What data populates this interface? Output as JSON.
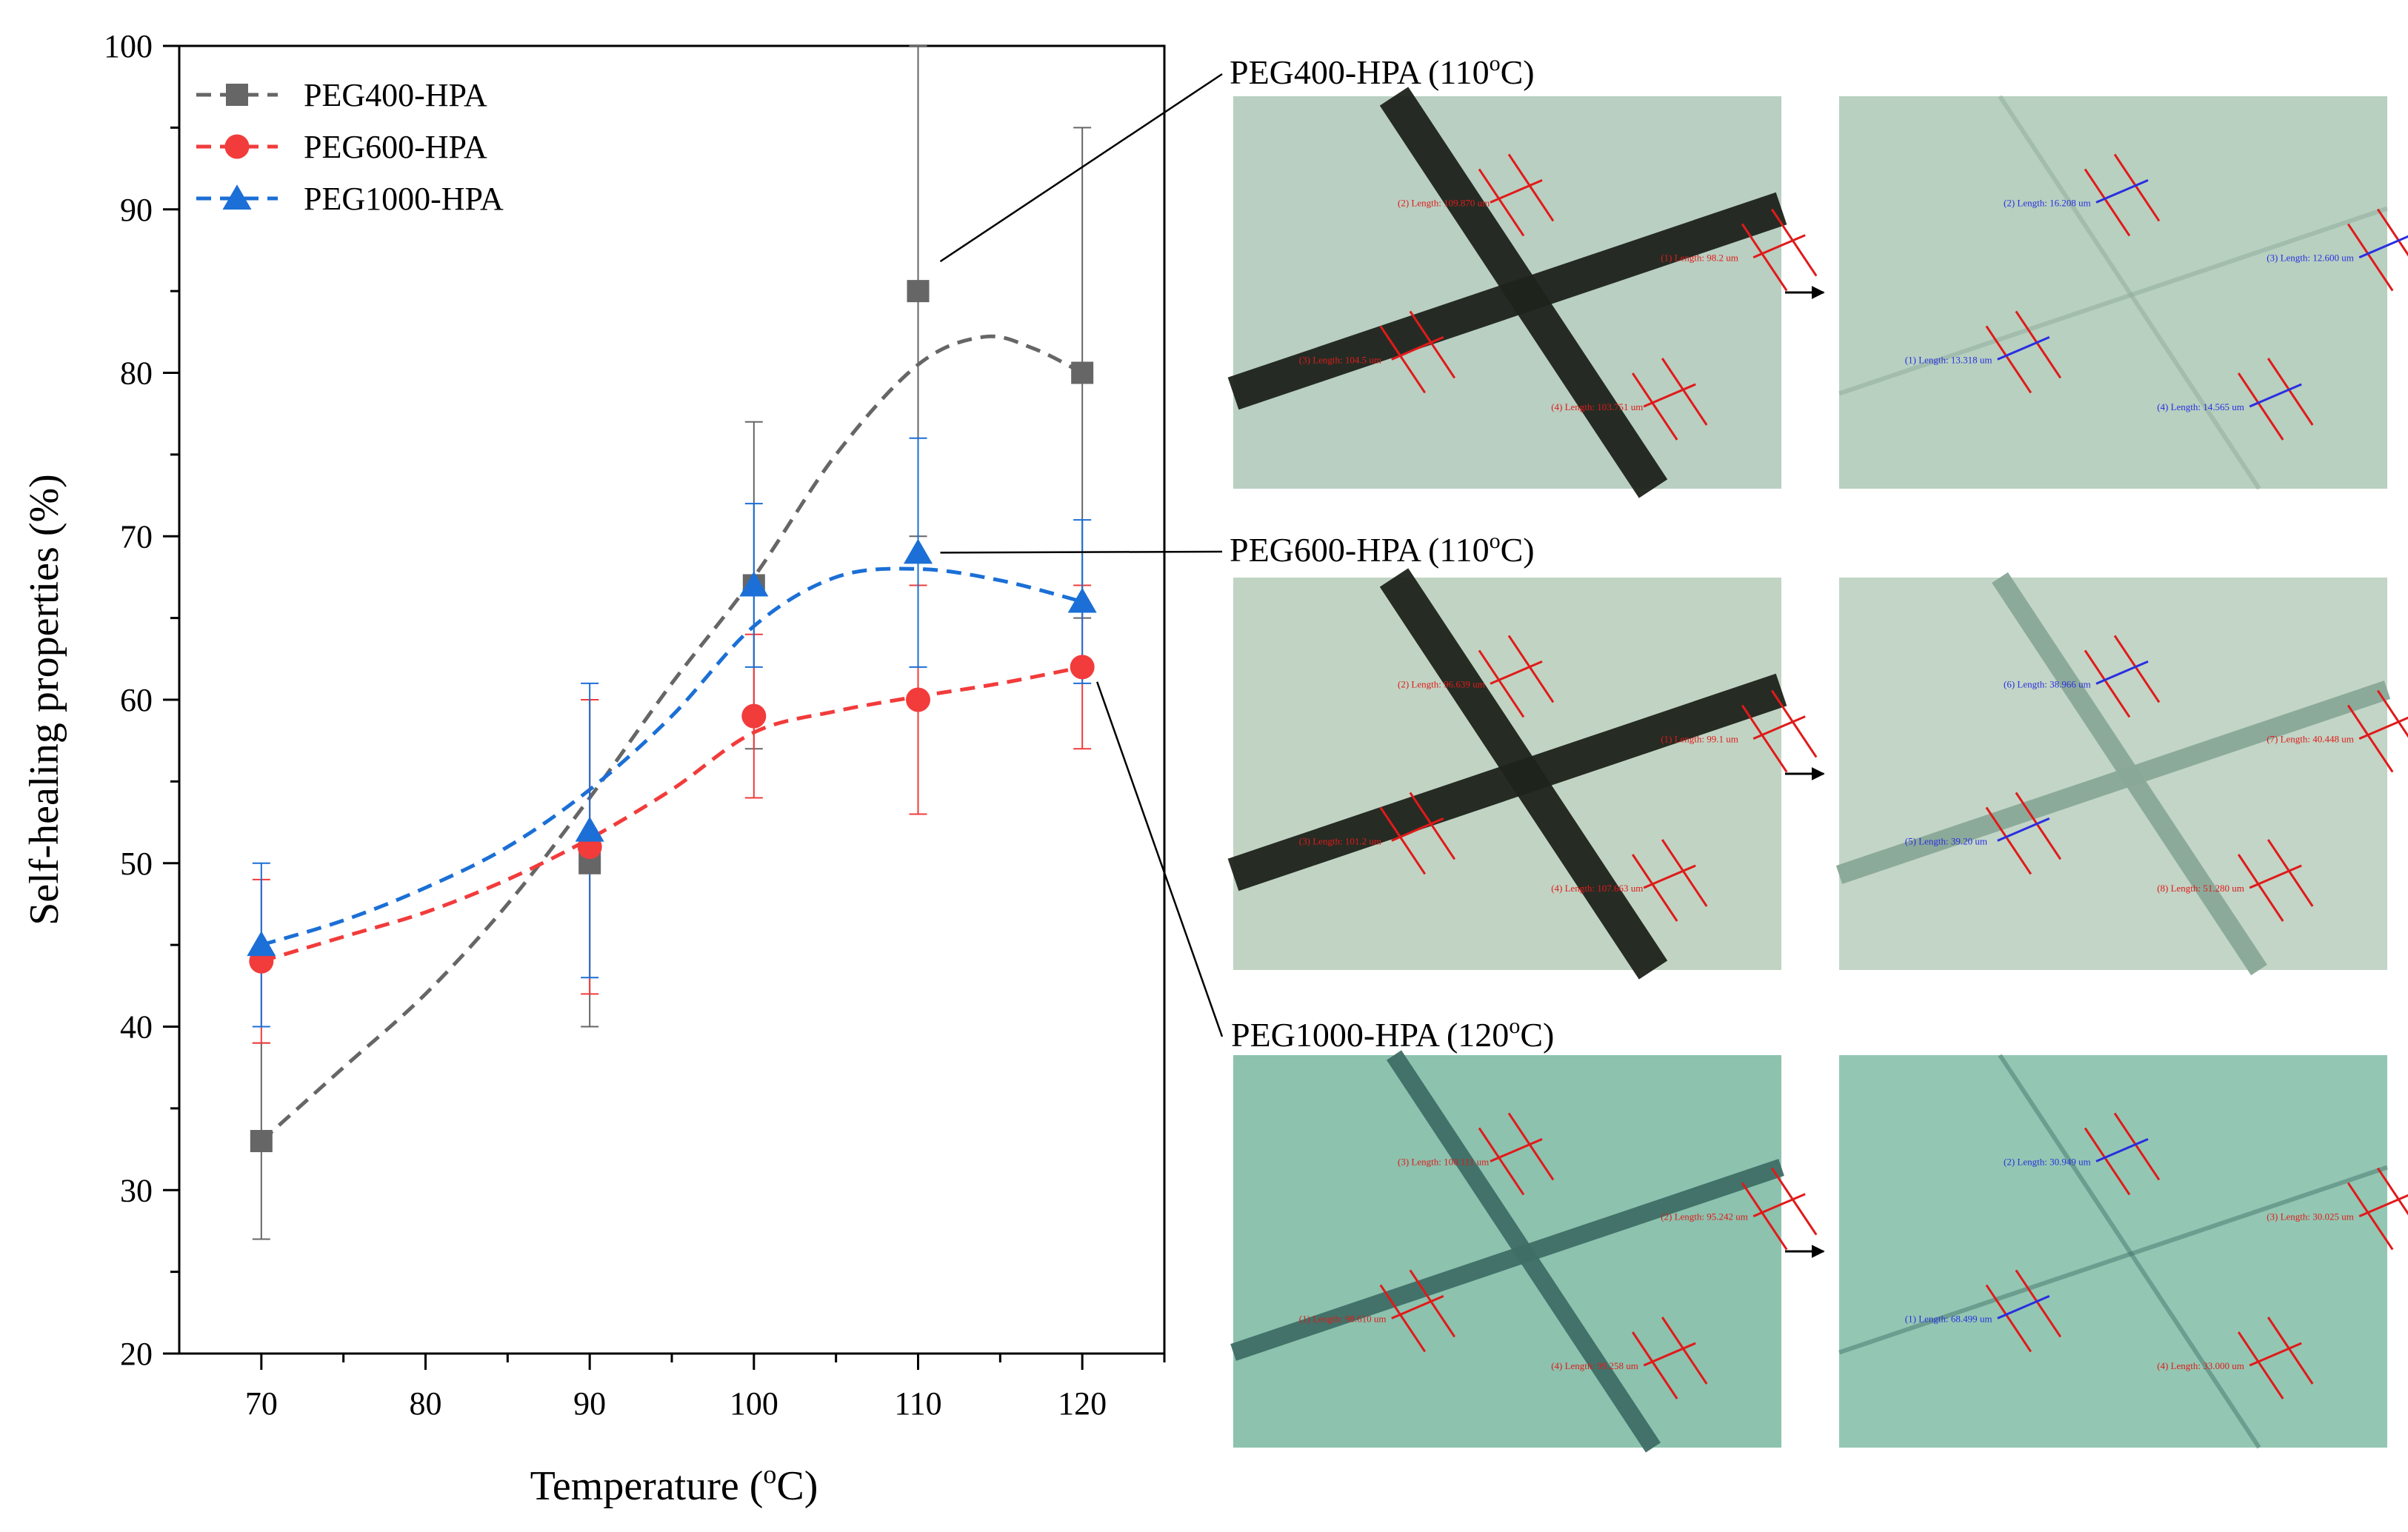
{
  "chart_data": {
    "type": "scatter",
    "xlabel": "Temperature (",
    "xlabel_sup": "o",
    "xlabel_tail": "C)",
    "ylabel": "Self-healing properties (%)",
    "xlim": [
      65,
      125
    ],
    "ylim": [
      20,
      100
    ],
    "x_ticks": [
      70,
      80,
      90,
      100,
      110,
      120
    ],
    "y_ticks": [
      20,
      30,
      40,
      50,
      60,
      70,
      80,
      90,
      100
    ],
    "legend_position": "top-left",
    "series": [
      {
        "name": "PEG400-HPA",
        "color": "#666666",
        "marker": "square",
        "x": [
          70,
          90,
          100,
          110,
          120
        ],
        "y": [
          33,
          50,
          67,
          85,
          80
        ],
        "err_low": [
          6,
          10,
          10,
          15,
          15
        ],
        "err_high": [
          6,
          10,
          10,
          15,
          15
        ],
        "fit": [
          [
            70,
            33
          ],
          [
            75,
            37.5
          ],
          [
            80,
            42
          ],
          [
            85,
            47.5
          ],
          [
            90,
            54
          ],
          [
            95,
            61
          ],
          [
            100,
            67.5
          ],
          [
            105,
            75
          ],
          [
            110,
            80.5
          ],
          [
            114,
            82.2
          ],
          [
            117,
            81.5
          ],
          [
            120,
            80
          ]
        ]
      },
      {
        "name": "PEG600-HPA",
        "color": "#f23b3b",
        "marker": "circle",
        "x": [
          70,
          90,
          100,
          110,
          120
        ],
        "y": [
          44,
          51,
          59,
          60,
          62
        ],
        "err_low": [
          5,
          9,
          5,
          7,
          5
        ],
        "err_high": [
          5,
          9,
          5,
          7,
          5
        ],
        "fit": [
          [
            70,
            44
          ],
          [
            75,
            45.5
          ],
          [
            80,
            47
          ],
          [
            85,
            49
          ],
          [
            90,
            51.5
          ],
          [
            95,
            54.5
          ],
          [
            100,
            58
          ],
          [
            105,
            59.3
          ],
          [
            110,
            60.2
          ],
          [
            115,
            61
          ],
          [
            120,
            62
          ]
        ]
      },
      {
        "name": "PEG1000-HPA",
        "color": "#1b6fd6",
        "marker": "triangle",
        "x": [
          70,
          90,
          100,
          110,
          120
        ],
        "y": [
          45,
          52,
          67,
          69,
          66
        ],
        "err_low": [
          5,
          9,
          5,
          7,
          5
        ],
        "err_high": [
          5,
          9,
          5,
          7,
          5
        ],
        "fit": [
          [
            70,
            45
          ],
          [
            75,
            46.5
          ],
          [
            80,
            48.5
          ],
          [
            85,
            51
          ],
          [
            90,
            54.5
          ],
          [
            95,
            59
          ],
          [
            100,
            64.5
          ],
          [
            105,
            67.5
          ],
          [
            110,
            68
          ],
          [
            115,
            67.3
          ],
          [
            120,
            66
          ]
        ]
      }
    ],
    "annotations": [
      {
        "label": "PEG400-HPA (110",
        "sup": "o",
        "tail": "C)",
        "series": 0,
        "point": 3
      },
      {
        "label": "PEG600-HPA (110",
        "sup": "o",
        "tail": "C)",
        "series": 2,
        "point": 3
      },
      {
        "label": "PEG1000-HPA (120",
        "sup": "o",
        "tail": "C)",
        "series": 1,
        "point": 4
      }
    ]
  },
  "micrographs": {
    "arrow_symbol": "→",
    "rows": [
      {
        "before": {
          "tint": "#b9cfc1",
          "labels": [
            "(2) Length: 109.870 um",
            "(1) Length: 98.2 um",
            "(3) Length: 104.5 um",
            "(4) Length: 103.751 um"
          ]
        },
        "after": {
          "tint": "#b7d0c0",
          "labels": [
            "(2) Length: 16.208 um",
            "(3) Length: 12.600 um",
            "(1) Length: 13.318 um",
            "(4) Length: 14.565 um"
          ]
        }
      },
      {
        "before": {
          "tint": "#c1d4c3",
          "labels": [
            "(2) Length: 96.639 um",
            "(1) Length: 99.1 um",
            "(3) Length: 101.2 um",
            "(4) Length: 107.663 um"
          ]
        },
        "after": {
          "tint": "#c2d5c6",
          "labels": [
            "(6) Length: 38.966 um",
            "(7) Length: 40.448 um",
            "(5) Length: 39.20 um",
            "(8) Length: 51.280 um"
          ]
        }
      },
      {
        "before": {
          "tint": "#8cc2ae",
          "labels": [
            "(3) Length: 100.111 um",
            "(2) Length: 95.242 um",
            "(1) Length: 98.610 um",
            "(4) Length: 99.258 um"
          ]
        },
        "after": {
          "tint": "#93c7b3",
          "labels": [
            "(2) Length: 30.949 um",
            "(3) Length: 30.025 um",
            "(1) Length: 68.499 um",
            "(4) Length: 33.000 um"
          ]
        }
      }
    ]
  }
}
